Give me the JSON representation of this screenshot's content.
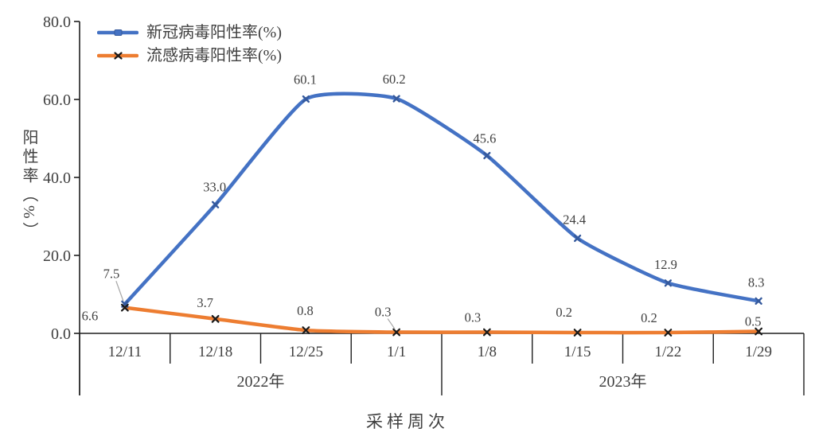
{
  "page": {
    "background": "#ffffff"
  },
  "chart_data": {
    "type": "line",
    "title": "",
    "xlabel": "采样周次",
    "ylabel": "阳性率（%）",
    "ylim": [
      0,
      80
    ],
    "ytick_values": [
      80,
      60,
      40,
      20,
      0
    ],
    "ytick_labels": [
      "80.0",
      "60.0",
      "40.0",
      "20.0",
      "0.0"
    ],
    "categories": [
      "12/11",
      "12/18",
      "12/25",
      "1/1",
      "1/8",
      "1/15",
      "1/22",
      "1/29"
    ],
    "year_groups": [
      {
        "label": "2022年",
        "start": 0,
        "end": 3
      },
      {
        "label": "2023年",
        "start": 4,
        "end": 7
      }
    ],
    "series": [
      {
        "name": "新冠病毒阳性率(%)",
        "color": "#4472C4",
        "marker": "x",
        "marker_color": "#35599c",
        "values": [
          7.5,
          33,
          60.1,
          60.2,
          45.6,
          24.4,
          12.9,
          8.3
        ],
        "labels": [
          "7.5",
          "33.0",
          "60.1",
          "60.2",
          "45.6",
          "24.4",
          "12.9",
          "8.3"
        ]
      },
      {
        "name": "流感病毒阳性率(%)",
        "color": "#ED7D31",
        "marker": "x",
        "marker_color": "#1a1a1a",
        "values": [
          6.6,
          3.7,
          0.8,
          0.3,
          0.3,
          0.2,
          0.2,
          0.5
        ],
        "labels": [
          "6.6",
          "3.7",
          "0.8",
          "0.3",
          "0.3",
          "0.2",
          "0.2",
          "0.5"
        ]
      }
    ],
    "legend_position": "top-left",
    "smooth": true,
    "grid": false
  },
  "colors": {
    "axis": "#1f1f1f",
    "text": "#3f3f3f",
    "data_label": "#404040",
    "leader": "#a6a6a6",
    "background": "#ffffff"
  }
}
